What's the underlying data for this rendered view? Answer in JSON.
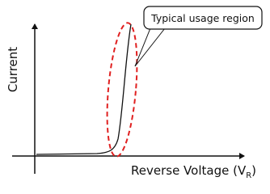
{
  "y_axis_label": "Current",
  "x_axis_label": {
    "text": "Reverse Voltage (V",
    "subscript": "R",
    "suffix": ")"
  },
  "callout": "Typical usage region"
}
